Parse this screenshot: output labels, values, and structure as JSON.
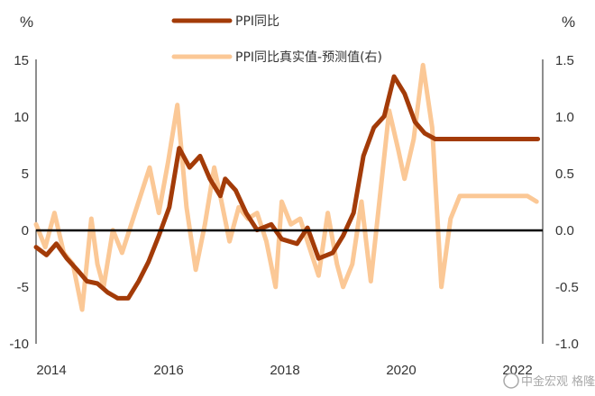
{
  "chart_data": {
    "type": "line",
    "left_unit": "%",
    "right_unit": "%",
    "ylim_left": [
      -10,
      15
    ],
    "ylim_right": [
      -1.0,
      1.5
    ],
    "left_ticks": [
      "15",
      "10",
      "5",
      "0",
      "-5",
      "-10"
    ],
    "right_ticks": [
      "1.5",
      "1.0",
      "0.5",
      "0.0",
      "-0.5",
      "-1.0"
    ],
    "x_tick_labels": [
      "2014",
      "2016",
      "2018",
      "2020",
      "2022"
    ],
    "xlim": [
      2014.0,
      2022.25
    ],
    "zero_line": true,
    "legend": "top-center",
    "series": [
      {
        "name": "PPI同比",
        "axis": "left",
        "color": "#a33b08",
        "x": [
          2014.0,
          2014.17,
          2014.33,
          2014.5,
          2014.67,
          2014.83,
          2015.0,
          2015.17,
          2015.33,
          2015.5,
          2015.67,
          2015.83,
          2016.0,
          2016.17,
          2016.33,
          2016.5,
          2016.67,
          2016.83,
          2017.0,
          2017.08,
          2017.25,
          2017.42,
          2017.6,
          2017.83,
          2018.0,
          2018.25,
          2018.42,
          2018.6,
          2018.83,
          2019.0,
          2019.17,
          2019.33,
          2019.5,
          2019.67,
          2019.83,
          2020.0,
          2020.17,
          2020.33,
          2020.5,
          2020.67,
          2020.83,
          2021.0,
          2021.17,
          2021.33,
          2021.5,
          2021.67,
          2021.75,
          2021.83,
          2022.0,
          2022.17
        ],
        "values": [
          -1.5,
          -2.2,
          -1.2,
          -2.5,
          -3.5,
          -4.5,
          -4.7,
          -5.5,
          -6.0,
          -6.0,
          -4.5,
          -2.8,
          -0.5,
          2.0,
          7.2,
          5.5,
          6.5,
          4.5,
          3.0,
          4.5,
          3.5,
          1.5,
          0.0,
          0.5,
          -0.8,
          -1.2,
          0.2,
          -2.5,
          -2.0,
          -0.5,
          1.5,
          6.5,
          9.0,
          10.0,
          13.5,
          12.0,
          9.5,
          8.5,
          8.0,
          8.0,
          8.0,
          8.0,
          8.0,
          8.0,
          8.0,
          8.0,
          8.0,
          8.0,
          8.0,
          8.0
        ]
      },
      {
        "name": "PPI同比真实值-预测值(右)",
        "axis": "right",
        "color": "#fbc896",
        "x": [
          2014.0,
          2014.15,
          2014.3,
          2014.45,
          2014.6,
          2014.75,
          2014.9,
          2015.0,
          2015.1,
          2015.25,
          2015.4,
          2015.55,
          2015.7,
          2015.85,
          2016.0,
          2016.15,
          2016.3,
          2016.45,
          2016.6,
          2016.75,
          2016.9,
          2017.0,
          2017.15,
          2017.3,
          2017.45,
          2017.6,
          2017.75,
          2017.9,
          2018.0,
          2018.15,
          2018.3,
          2018.45,
          2018.6,
          2018.75,
          2018.9,
          2019.0,
          2019.15,
          2019.3,
          2019.45,
          2019.6,
          2019.75,
          2019.9,
          2020.0,
          2020.15,
          2020.3,
          2020.45,
          2020.6,
          2020.75,
          2020.9,
          2021.0,
          2021.15,
          2021.3,
          2021.45,
          2021.6,
          2021.75,
          2021.85,
          2022.0,
          2022.15
        ],
        "values": [
          0.05,
          -0.15,
          0.15,
          -0.2,
          -0.3,
          -0.7,
          0.1,
          -0.3,
          -0.5,
          0.0,
          -0.2,
          0.05,
          0.3,
          0.55,
          0.15,
          0.6,
          1.1,
          0.2,
          -0.35,
          0.05,
          0.55,
          0.3,
          -0.1,
          0.2,
          0.1,
          0.15,
          -0.1,
          -0.5,
          0.25,
          0.05,
          0.1,
          -0.15,
          -0.4,
          0.15,
          -0.3,
          -0.5,
          -0.3,
          0.25,
          -0.45,
          0.3,
          1.05,
          0.7,
          0.45,
          0.8,
          1.45,
          0.9,
          -0.5,
          0.1,
          0.3,
          0.3,
          0.3,
          0.3,
          0.3,
          0.3,
          0.3,
          0.3,
          0.3,
          0.25
        ]
      }
    ],
    "watermark": "中金宏观 格隆汇"
  }
}
